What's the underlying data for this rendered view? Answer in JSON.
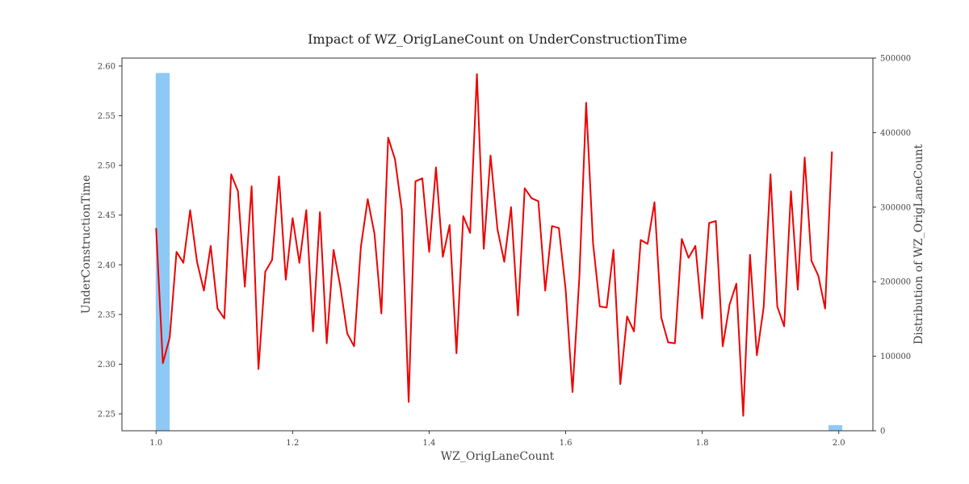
{
  "chart_data": {
    "type": "line",
    "title": "Impact of WZ_OrigLaneCount on UnderConstructionTime",
    "xlabel": "WZ_OrigLaneCount",
    "ylabel": "UnderConstructionTime",
    "ylabel_right": "Distribution of WZ_OrigLaneCount",
    "xlim": [
      0.95,
      2.05
    ],
    "ylim": [
      2.233,
      2.608
    ],
    "ylim_right": [
      0,
      500000
    ],
    "x_ticks": [
      1.0,
      1.2,
      1.4,
      1.6,
      1.8,
      2.0
    ],
    "x_tick_labels": [
      "1.0",
      "1.2",
      "1.4",
      "1.6",
      "1.8",
      "2.0"
    ],
    "y_ticks": [
      2.25,
      2.3,
      2.35,
      2.4,
      2.45,
      2.5,
      2.55,
      2.6
    ],
    "y_tick_labels": [
      "2.25",
      "2.30",
      "2.35",
      "2.40",
      "2.45",
      "2.50",
      "2.55",
      "2.60"
    ],
    "y_right_ticks": [
      0,
      100000,
      200000,
      300000,
      400000,
      500000
    ],
    "y_right_tick_labels": [
      "0",
      "100000",
      "200000",
      "300000",
      "400000",
      "500000"
    ],
    "grid": false,
    "series": [
      {
        "kind": "line",
        "color": "#ee0000",
        "x": [
          1.0,
          1.01,
          1.02,
          1.03,
          1.04,
          1.05,
          1.06,
          1.07,
          1.08,
          1.09,
          1.1,
          1.11,
          1.12,
          1.13,
          1.14,
          1.15,
          1.16,
          1.17,
          1.18,
          1.19,
          1.2,
          1.21,
          1.22,
          1.23,
          1.24,
          1.25,
          1.26,
          1.27,
          1.28,
          1.29,
          1.3,
          1.31,
          1.32,
          1.33,
          1.34,
          1.35,
          1.36,
          1.37,
          1.38,
          1.39,
          1.4,
          1.41,
          1.42,
          1.43,
          1.44,
          1.45,
          1.46,
          1.47,
          1.48,
          1.49,
          1.5,
          1.51,
          1.52,
          1.53,
          1.54,
          1.55,
          1.56,
          1.57,
          1.58,
          1.59,
          1.6,
          1.61,
          1.62,
          1.63,
          1.64,
          1.65,
          1.66,
          1.67,
          1.68,
          1.69,
          1.7,
          1.71,
          1.72,
          1.73,
          1.74,
          1.75,
          1.76,
          1.77,
          1.78,
          1.79,
          1.8,
          1.81,
          1.82,
          1.83,
          1.84,
          1.85,
          1.86,
          1.87,
          1.88,
          1.89,
          1.9,
          1.91,
          1.92,
          1.93,
          1.94,
          1.95,
          1.96,
          1.97,
          1.98,
          1.99
        ],
        "y": [
          2.437,
          2.301,
          2.327,
          2.413,
          2.402,
          2.455,
          2.403,
          2.374,
          2.419,
          2.356,
          2.346,
          2.491,
          2.474,
          2.378,
          2.479,
          2.295,
          2.393,
          2.405,
          2.489,
          2.385,
          2.447,
          2.402,
          2.455,
          2.333,
          2.453,
          2.321,
          2.415,
          2.378,
          2.331,
          2.318,
          2.418,
          2.466,
          2.431,
          2.351,
          2.528,
          2.506,
          2.455,
          2.262,
          2.484,
          2.487,
          2.413,
          2.498,
          2.408,
          2.44,
          2.311,
          2.449,
          2.432,
          2.592,
          2.416,
          2.51,
          2.436,
          2.403,
          2.458,
          2.349,
          2.477,
          2.467,
          2.464,
          2.374,
          2.439,
          2.437,
          2.375,
          2.272,
          2.388,
          2.563,
          2.422,
          2.358,
          2.357,
          2.415,
          2.28,
          2.348,
          2.333,
          2.425,
          2.421,
          2.463,
          2.347,
          2.322,
          2.321,
          2.426,
          2.407,
          2.419,
          2.346,
          2.442,
          2.444,
          2.318,
          2.36,
          2.381,
          2.248,
          2.41,
          2.309,
          2.357,
          2.491,
          2.358,
          2.338,
          2.474,
          2.375,
          2.508,
          2.404,
          2.389,
          2.356,
          2.514
        ]
      },
      {
        "kind": "bar",
        "axis": "right",
        "color": "#8ec9f5",
        "bins": [
          [
            0.9995,
            1.02,
            480000
          ],
          [
            1.985,
            2.005,
            7500
          ]
        ]
      }
    ]
  }
}
